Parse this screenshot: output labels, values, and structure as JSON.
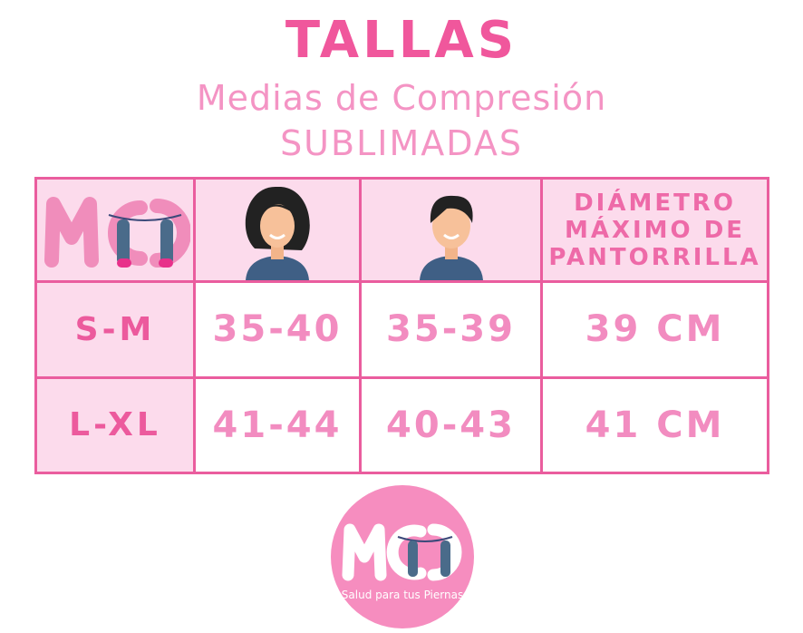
{
  "header": {
    "title": "TALLAS",
    "subtitle": "Medias de Compresión",
    "subtitle2": "SUBLIMADAS"
  },
  "table": {
    "header": {
      "col1_icon": "woman-avatar-icon",
      "col2_icon": "man-avatar-icon",
      "col3": [
        "DIÁMETRO",
        "MÁXIMO DE",
        "PANTORRILLA"
      ]
    },
    "rows": [
      {
        "size": "S-M",
        "women": "35-40",
        "men": "35-39",
        "calf": "39 CM"
      },
      {
        "size": "L-XL",
        "women": "41-44",
        "men": "40-43",
        "calf": "41 CM"
      }
    ]
  },
  "logo": {
    "letters": "MCJ",
    "tagline": "Salud para tus Piernas"
  },
  "colors": {
    "title": "#f0579c",
    "text": "#f28cc0",
    "border": "#ea5d9e",
    "fill": "#fcdbec",
    "logo_circle": "#f68dbf"
  }
}
